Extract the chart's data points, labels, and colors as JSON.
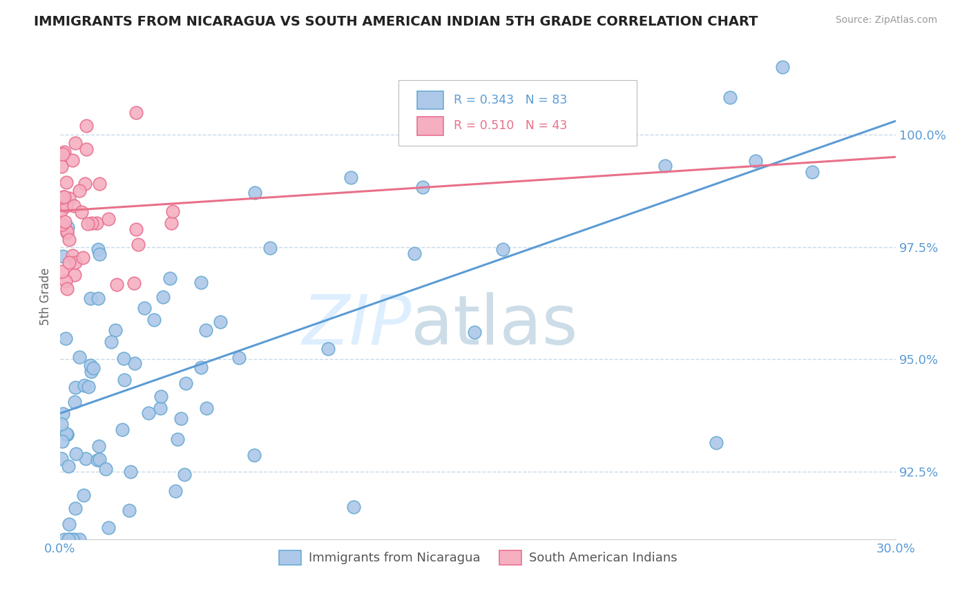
{
  "title": "IMMIGRANTS FROM NICARAGUA VS SOUTH AMERICAN INDIAN 5TH GRADE CORRELATION CHART",
  "source": "Source: ZipAtlas.com",
  "ylabel": "5th Grade",
  "xmin": 0.0,
  "xmax": 30.0,
  "ymin": 91.0,
  "ymax": 101.8,
  "yticks": [
    92.5,
    95.0,
    97.5,
    100.0
  ],
  "yticklabels": [
    "92.5%",
    "95.0%",
    "97.5%",
    "100.0%"
  ],
  "xticks": [
    0.0,
    30.0
  ],
  "xticklabels": [
    "0.0%",
    "30.0%"
  ],
  "blue_R": 0.343,
  "blue_N": 83,
  "pink_R": 0.51,
  "pink_N": 43,
  "blue_color": "#adc8e8",
  "pink_color": "#f5afc0",
  "blue_edge_color": "#6aaad4",
  "pink_edge_color": "#e87090",
  "blue_line_color": "#5b9bd5",
  "pink_line_color": "#e8708a",
  "blue_label": "Immigrants from Nicaragua",
  "pink_label": "South American Indians",
  "blue_trend_x": [
    0.0,
    30.0
  ],
  "blue_trend_y": [
    93.8,
    100.3
  ],
  "pink_trend_x": [
    0.0,
    30.0
  ],
  "pink_trend_y": [
    98.3,
    99.5
  ],
  "watermark_zip": "ZIP",
  "watermark_atlas": "atlas",
  "background_color": "#ffffff",
  "grid_color": "#c8d8e8",
  "tick_color": "#5b9bd5",
  "title_color": "#222222",
  "source_color": "#999999"
}
